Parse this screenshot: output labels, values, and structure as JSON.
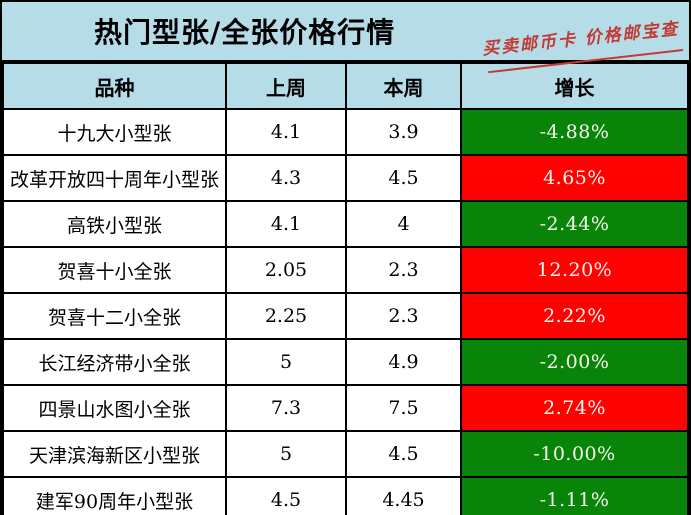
{
  "title": "热门型张/全张价格行情",
  "watermark": "买卖邮币卡 价格邮宝查",
  "columns": {
    "variety": "品种",
    "last_week": "上周",
    "this_week": "本周",
    "growth": "增长"
  },
  "rows": [
    {
      "name": "十九大小型张",
      "last_week": "4.1",
      "this_week": "3.9",
      "growth": "-4.88%",
      "trend": "down"
    },
    {
      "name": "改革开放四十周年小型张",
      "last_week": "4.3",
      "this_week": "4.5",
      "growth": "4.65%",
      "trend": "up"
    },
    {
      "name": "高铁小型张",
      "last_week": "4.1",
      "this_week": "4",
      "growth": "-2.44%",
      "trend": "down"
    },
    {
      "name": "贺喜十小全张",
      "last_week": "2.05",
      "this_week": "2.3",
      "growth": "12.20%",
      "trend": "up"
    },
    {
      "name": "贺喜十二小全张",
      "last_week": "2.25",
      "this_week": "2.3",
      "growth": "2.22%",
      "trend": "up"
    },
    {
      "name": "长江经济带小全张",
      "last_week": "5",
      "this_week": "4.9",
      "growth": "-2.00%",
      "trend": "down"
    },
    {
      "name": "四景山水图小全张",
      "last_week": "7.3",
      "this_week": "7.5",
      "growth": "2.74%",
      "trend": "up"
    },
    {
      "name": "天津滨海新区小型张",
      "last_week": "5",
      "this_week": "4.5",
      "growth": "-10.00%",
      "trend": "down"
    },
    {
      "name": "建军90周年小型张",
      "last_week": "4.5",
      "this_week": "4.45",
      "growth": "-1.11%",
      "trend": "down"
    }
  ],
  "colors": {
    "up_bg": "#fe0101",
    "down_bg": "#088408",
    "growth_text": "#faf8ee",
    "panel_bg": "#b6dce8",
    "watermark_red": "#c13b33",
    "grid": "#000000"
  },
  "chart_data": {
    "type": "table",
    "title": "热门型张/全张价格行情",
    "categories": [
      "十九大小型张",
      "改革开放四十周年小型张",
      "高铁小型张",
      "贺喜十小全张",
      "贺喜十二小全张",
      "长江经济带小全张",
      "四景山水图小全张",
      "天津滨海新区小型张",
      "建军90周年小型张"
    ],
    "series": [
      {
        "name": "上周",
        "values": [
          4.1,
          4.3,
          4.1,
          2.05,
          2.25,
          5,
          7.3,
          5,
          4.5
        ]
      },
      {
        "name": "本周",
        "values": [
          3.9,
          4.5,
          4,
          2.3,
          2.3,
          4.9,
          7.5,
          4.5,
          4.45
        ]
      },
      {
        "name": "增长",
        "values": [
          -4.88,
          4.65,
          -2.44,
          12.2,
          2.22,
          -2.0,
          2.74,
          -10.0,
          -1.11
        ]
      }
    ],
    "annotations": [
      "买卖邮币卡 价格邮宝查"
    ],
    "notes": "增长 column cells are green when negative, red when positive; values shown as percents"
  }
}
